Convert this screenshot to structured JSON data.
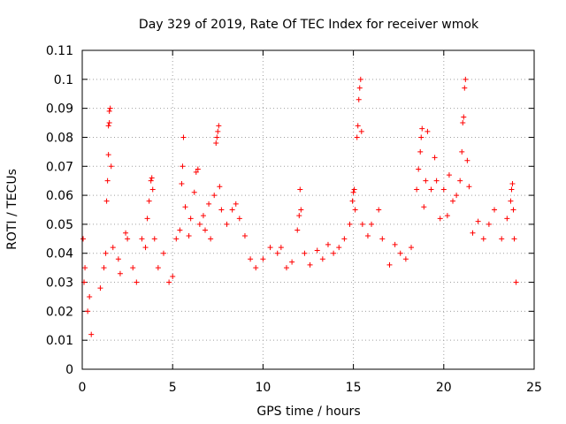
{
  "chart_data": {
    "type": "scatter",
    "title": "Day 329 of 2019, Rate Of TEC Index for receiver wmok",
    "xlabel": "GPS time / hours",
    "ylabel": "ROTI / TECUs",
    "xlim": [
      0,
      25
    ],
    "ylim": [
      0,
      0.11
    ],
    "x_ticks": [
      "0",
      "5",
      "10",
      "15",
      "20",
      "25"
    ],
    "y_ticks": [
      "0",
      "0.01",
      "0.02",
      "0.03",
      "0.04",
      "0.05",
      "0.06",
      "0.07",
      "0.08",
      "0.09",
      "0.1",
      "0.11"
    ],
    "grid": true,
    "marker": "+",
    "color": "#ff0000",
    "series": [
      {
        "points": [
          [
            0.05,
            0.045
          ],
          [
            0.1,
            0.03
          ],
          [
            0.15,
            0.035
          ],
          [
            0.3,
            0.02
          ],
          [
            0.4,
            0.025
          ],
          [
            0.5,
            0.012
          ],
          [
            1.0,
            0.028
          ],
          [
            1.2,
            0.035
          ],
          [
            1.3,
            0.04
          ],
          [
            1.35,
            0.058
          ],
          [
            1.4,
            0.065
          ],
          [
            1.45,
            0.074
          ],
          [
            1.45,
            0.084
          ],
          [
            1.5,
            0.085
          ],
          [
            1.5,
            0.089
          ],
          [
            1.55,
            0.09
          ],
          [
            1.6,
            0.07
          ],
          [
            1.7,
            0.042
          ],
          [
            2.0,
            0.038
          ],
          [
            2.1,
            0.033
          ],
          [
            2.4,
            0.047
          ],
          [
            2.5,
            0.045
          ],
          [
            2.8,
            0.035
          ],
          [
            3.0,
            0.03
          ],
          [
            3.3,
            0.045
          ],
          [
            3.5,
            0.042
          ],
          [
            3.6,
            0.052
          ],
          [
            3.7,
            0.058
          ],
          [
            3.8,
            0.065
          ],
          [
            3.85,
            0.066
          ],
          [
            3.9,
            0.062
          ],
          [
            4.0,
            0.045
          ],
          [
            4.2,
            0.035
          ],
          [
            4.5,
            0.04
          ],
          [
            4.8,
            0.03
          ],
          [
            5.0,
            0.032
          ],
          [
            5.2,
            0.045
          ],
          [
            5.4,
            0.048
          ],
          [
            5.5,
            0.064
          ],
          [
            5.55,
            0.07
          ],
          [
            5.6,
            0.08
          ],
          [
            5.7,
            0.056
          ],
          [
            5.9,
            0.046
          ],
          [
            6.0,
            0.052
          ],
          [
            6.2,
            0.061
          ],
          [
            6.3,
            0.068
          ],
          [
            6.4,
            0.069
          ],
          [
            6.5,
            0.05
          ],
          [
            6.7,
            0.053
          ],
          [
            6.8,
            0.048
          ],
          [
            7.0,
            0.057
          ],
          [
            7.1,
            0.045
          ],
          [
            7.3,
            0.06
          ],
          [
            7.4,
            0.078
          ],
          [
            7.45,
            0.08
          ],
          [
            7.5,
            0.082
          ],
          [
            7.55,
            0.084
          ],
          [
            7.6,
            0.063
          ],
          [
            7.7,
            0.055
          ],
          [
            8.0,
            0.05
          ],
          [
            8.3,
            0.055
          ],
          [
            8.5,
            0.057
          ],
          [
            8.7,
            0.052
          ],
          [
            9.0,
            0.046
          ],
          [
            9.3,
            0.038
          ],
          [
            9.6,
            0.035
          ],
          [
            10.0,
            0.038
          ],
          [
            10.4,
            0.042
          ],
          [
            10.8,
            0.04
          ],
          [
            11.0,
            0.042
          ],
          [
            11.3,
            0.035
          ],
          [
            11.6,
            0.037
          ],
          [
            11.9,
            0.048
          ],
          [
            12.0,
            0.053
          ],
          [
            12.1,
            0.055
          ],
          [
            12.05,
            0.062
          ],
          [
            12.3,
            0.04
          ],
          [
            12.6,
            0.036
          ],
          [
            13.0,
            0.041
          ],
          [
            13.3,
            0.038
          ],
          [
            13.6,
            0.043
          ],
          [
            13.9,
            0.04
          ],
          [
            14.2,
            0.042
          ],
          [
            14.5,
            0.045
          ],
          [
            14.8,
            0.05
          ],
          [
            14.95,
            0.058
          ],
          [
            15.0,
            0.061
          ],
          [
            15.05,
            0.062
          ],
          [
            15.1,
            0.055
          ],
          [
            15.2,
            0.08
          ],
          [
            15.25,
            0.084
          ],
          [
            15.3,
            0.093
          ],
          [
            15.35,
            0.097
          ],
          [
            15.4,
            0.1
          ],
          [
            15.45,
            0.082
          ],
          [
            15.5,
            0.05
          ],
          [
            15.8,
            0.046
          ],
          [
            16.0,
            0.05
          ],
          [
            16.4,
            0.055
          ],
          [
            16.6,
            0.045
          ],
          [
            17.0,
            0.036
          ],
          [
            17.3,
            0.043
          ],
          [
            17.6,
            0.04
          ],
          [
            17.9,
            0.038
          ],
          [
            18.2,
            0.042
          ],
          [
            18.5,
            0.062
          ],
          [
            18.6,
            0.069
          ],
          [
            18.7,
            0.075
          ],
          [
            18.75,
            0.08
          ],
          [
            18.8,
            0.083
          ],
          [
            18.9,
            0.056
          ],
          [
            19.0,
            0.065
          ],
          [
            19.1,
            0.082
          ],
          [
            19.3,
            0.062
          ],
          [
            19.5,
            0.073
          ],
          [
            19.6,
            0.065
          ],
          [
            19.8,
            0.052
          ],
          [
            20.0,
            0.062
          ],
          [
            20.2,
            0.053
          ],
          [
            20.3,
            0.067
          ],
          [
            20.5,
            0.058
          ],
          [
            20.7,
            0.06
          ],
          [
            20.9,
            0.065
          ],
          [
            21.0,
            0.075
          ],
          [
            21.05,
            0.085
          ],
          [
            21.1,
            0.087
          ],
          [
            21.15,
            0.097
          ],
          [
            21.2,
            0.1
          ],
          [
            21.3,
            0.072
          ],
          [
            21.4,
            0.063
          ],
          [
            21.6,
            0.047
          ],
          [
            21.9,
            0.051
          ],
          [
            22.2,
            0.045
          ],
          [
            22.5,
            0.05
          ],
          [
            22.8,
            0.055
          ],
          [
            23.2,
            0.045
          ],
          [
            23.5,
            0.052
          ],
          [
            23.7,
            0.058
          ],
          [
            23.75,
            0.062
          ],
          [
            23.8,
            0.064
          ],
          [
            23.85,
            0.055
          ],
          [
            23.9,
            0.045
          ],
          [
            24.0,
            0.03
          ]
        ]
      }
    ]
  }
}
